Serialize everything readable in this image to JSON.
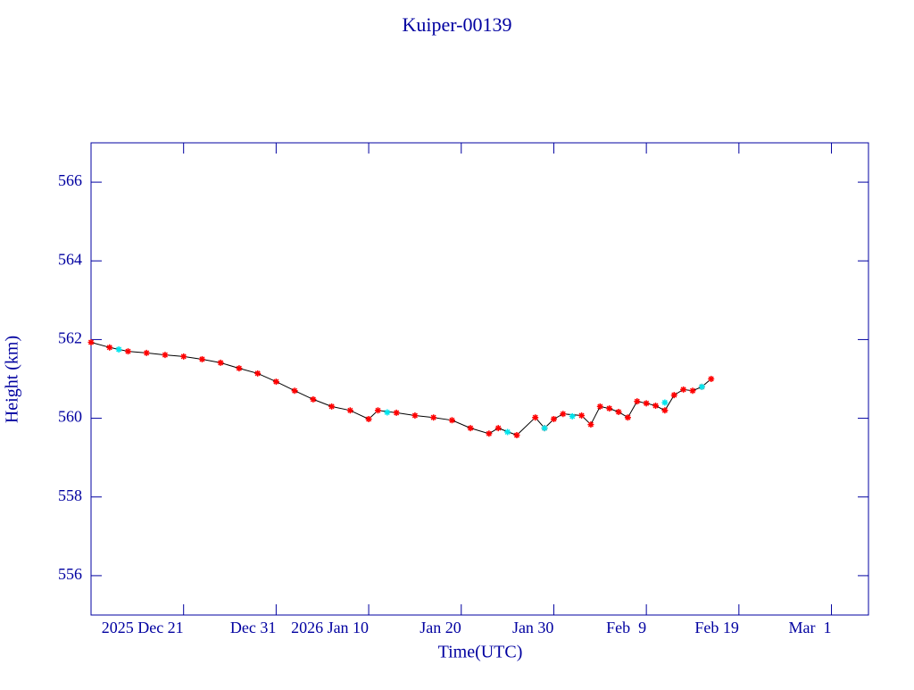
{
  "chart_data": {
    "type": "line",
    "title": "Kuiper-00139",
    "x_label": "Time(UTC)",
    "y_label": "Height (km)",
    "xlim": [
      "2025-12-11",
      "2026-03-05"
    ],
    "xticks": [
      {
        "value": "2025-12-21",
        "label": "2025 Dec 21"
      },
      {
        "value": "2025-12-31",
        "label": "Dec 31"
      },
      {
        "value": "2026-01-10",
        "label": "2026 Jan 10"
      },
      {
        "value": "2026-01-20",
        "label": "Jan 20"
      },
      {
        "value": "2026-01-30",
        "label": "Jan 30"
      },
      {
        "value": "2026-02-09",
        "label": "Feb  9"
      },
      {
        "value": "2026-02-19",
        "label": "Feb 19"
      },
      {
        "value": "2026-03-01",
        "label": "Mar  1"
      }
    ],
    "ylim": [
      555,
      567
    ],
    "yticks": [
      556,
      558,
      560,
      562,
      564,
      566
    ],
    "line_color": "#000000",
    "series": [
      {
        "color": "#ff0000",
        "x": [
          "2025-12-11",
          "2025-12-13",
          "2025-12-15",
          "2025-12-17",
          "2025-12-19",
          "2025-12-21",
          "2025-12-23",
          "2025-12-25",
          "2025-12-27",
          "2025-12-29",
          "2025-12-31",
          "2026-01-02",
          "2026-01-04",
          "2026-01-06",
          "2026-01-08",
          "2026-01-10",
          "2026-01-11",
          "2026-01-13",
          "2026-01-15",
          "2026-01-17",
          "2026-01-19",
          "2026-01-21",
          "2026-01-23",
          "2026-01-24",
          "2026-01-26",
          "2026-01-28",
          "2026-01-29",
          "2026-01-30",
          "2026-01-31",
          "2026-02-02",
          "2026-02-03",
          "2026-02-04",
          "2026-02-05",
          "2026-02-06",
          "2026-02-07",
          "2026-02-08",
          "2026-02-09",
          "2026-02-10",
          "2026-02-11",
          "2026-02-12",
          "2026-02-13",
          "2026-02-14",
          "2026-02-15",
          "2026-02-16"
        ],
        "values": [
          561.93,
          561.8,
          561.7,
          561.66,
          561.61,
          561.57,
          561.5,
          561.41,
          561.27,
          561.14,
          560.93,
          560.7,
          560.48,
          560.3,
          560.2,
          559.98,
          560.2,
          560.14,
          560.07,
          560.02,
          559.95,
          559.75,
          559.61,
          559.75,
          559.57,
          560.02,
          559.75,
          559.98,
          560.11,
          560.07,
          559.84,
          560.3,
          560.25,
          560.16,
          560.02,
          560.43,
          560.38,
          560.32,
          560.2,
          560.59,
          560.73,
          560.7,
          560.8,
          561.0
        ]
      },
      {
        "color": "#00e5ee",
        "x": [
          "2025-12-14",
          "2026-01-12",
          "2026-01-25",
          "2026-01-29",
          "2026-02-01",
          "2026-02-11",
          "2026-02-15"
        ],
        "values": [
          561.75,
          560.15,
          559.65,
          559.75,
          560.05,
          560.4,
          560.8
        ]
      }
    ]
  }
}
